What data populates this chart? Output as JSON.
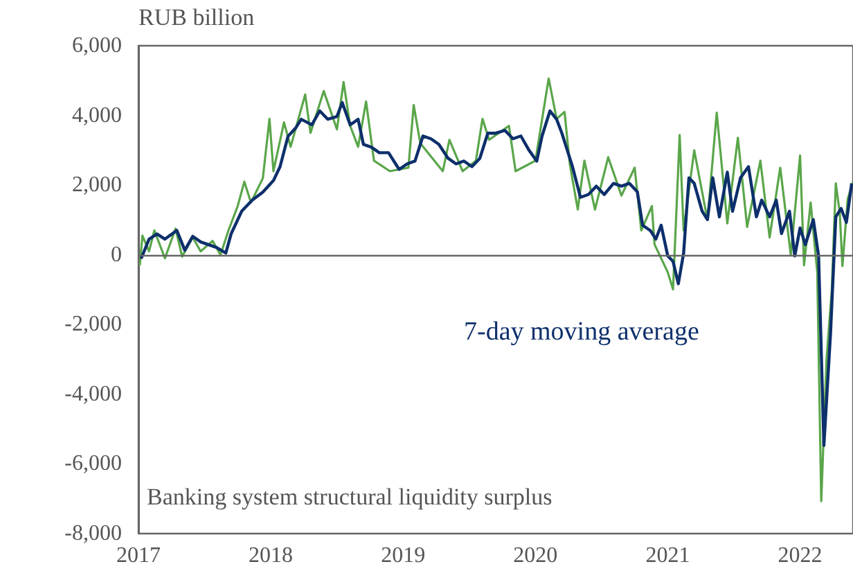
{
  "chart_data": {
    "type": "line",
    "title": "Banking system structural liquidity surplus",
    "ylabel": "RUB billion",
    "xlim": [
      2017,
      2022.4
    ],
    "xticks": [
      2017,
      2018,
      2019,
      2020,
      2021,
      2022
    ],
    "ylim": [
      -8000,
      6000
    ],
    "yticks": [
      {
        "value": 6000,
        "label": "6,000"
      },
      {
        "value": 4000,
        "label": "4,000"
      },
      {
        "value": 2000,
        "label": "2,000"
      },
      {
        "value": 0,
        "label": "0"
      },
      {
        "value": -2000,
        "label": "-2,000"
      },
      {
        "value": -4000,
        "label": "-4,000"
      },
      {
        "value": -6000,
        "label": "-6,000"
      },
      {
        "value": -8000,
        "label": "-8,000"
      }
    ],
    "grid": false,
    "legend": false,
    "marker": "none",
    "line_style": "solid",
    "ref_lines": [
      {
        "axis": "y",
        "value": 0,
        "color": "#666666"
      }
    ],
    "series": [
      {
        "color": "#5aa64a",
        "x": [
          2017.01,
          2017.03,
          2017.08,
          2017.12,
          2017.2,
          2017.28,
          2017.33,
          2017.41,
          2017.47,
          2017.56,
          2017.62,
          2017.68,
          2017.75,
          2017.8,
          2017.85,
          2017.94,
          2017.99,
          2018.02,
          2018.1,
          2018.15,
          2018.26,
          2018.3,
          2018.4,
          2018.5,
          2018.55,
          2018.6,
          2018.66,
          2018.72,
          2018.78,
          2018.9,
          2019.04,
          2019.08,
          2019.13,
          2019.3,
          2019.35,
          2019.45,
          2019.55,
          2019.6,
          2019.65,
          2019.8,
          2019.85,
          2020.0,
          2020.1,
          2020.16,
          2020.22,
          2020.26,
          2020.32,
          2020.37,
          2020.45,
          2020.55,
          2020.65,
          2020.75,
          2020.8,
          2020.88,
          2020.9,
          2021.0,
          2021.04,
          2021.09,
          2021.12,
          2021.2,
          2021.3,
          2021.37,
          2021.45,
          2021.53,
          2021.6,
          2021.7,
          2021.77,
          2021.85,
          2021.93,
          2022.0,
          2022.03,
          2022.08,
          2022.13,
          2022.16,
          2022.2,
          2022.24,
          2022.27,
          2022.3,
          2022.32,
          2022.36,
          2022.4
        ],
        "values": [
          -300,
          550,
          100,
          700,
          -100,
          750,
          -50,
          500,
          100,
          400,
          0,
          700,
          1400,
          2100,
          1500,
          2200,
          3900,
          2400,
          3800,
          3100,
          4600,
          3500,
          4700,
          3600,
          4960,
          3700,
          3100,
          4400,
          2700,
          2400,
          2500,
          4300,
          3200,
          2400,
          3300,
          2400,
          2700,
          3900,
          3300,
          3700,
          2400,
          2700,
          5060,
          3900,
          4100,
          2600,
          1300,
          2700,
          1300,
          2800,
          1700,
          2500,
          700,
          1400,
          300,
          -500,
          -990,
          3440,
          700,
          3000,
          1000,
          4080,
          900,
          3360,
          800,
          2700,
          500,
          2500,
          0,
          2850,
          -300,
          1500,
          -500,
          -7070,
          -3000,
          -1000,
          2050,
          1200,
          -320,
          1600,
          2100
        ]
      },
      {
        "name": "7-day moving average",
        "color": "#0d2f6b",
        "x": [
          2017.02,
          2017.08,
          2017.14,
          2017.2,
          2017.29,
          2017.35,
          2017.41,
          2017.47,
          2017.53,
          2017.59,
          2017.66,
          2017.7,
          2017.78,
          2017.86,
          2017.94,
          2018.02,
          2018.07,
          2018.13,
          2018.19,
          2018.23,
          2018.31,
          2018.37,
          2018.43,
          2018.5,
          2018.54,
          2018.6,
          2018.66,
          2018.7,
          2018.76,
          2018.82,
          2018.89,
          2018.97,
          2019.03,
          2019.09,
          2019.15,
          2019.21,
          2019.27,
          2019.34,
          2019.4,
          2019.46,
          2019.52,
          2019.58,
          2019.64,
          2019.7,
          2019.77,
          2019.83,
          2019.89,
          2019.95,
          2020.01,
          2020.05,
          2020.11,
          2020.16,
          2020.2,
          2020.24,
          2020.28,
          2020.34,
          2020.4,
          2020.46,
          2020.52,
          2020.59,
          2020.65,
          2020.71,
          2020.77,
          2020.81,
          2020.87,
          2020.91,
          2020.95,
          2021.0,
          2021.04,
          2021.08,
          2021.12,
          2021.16,
          2021.2,
          2021.26,
          2021.3,
          2021.34,
          2021.39,
          2021.45,
          2021.49,
          2021.55,
          2021.61,
          2021.67,
          2021.71,
          2021.77,
          2021.82,
          2021.86,
          2021.92,
          2021.96,
          2022.0,
          2022.04,
          2022.1,
          2022.14,
          2022.18,
          2022.23,
          2022.27,
          2022.31,
          2022.35,
          2022.39
        ],
        "values": [
          -110,
          450,
          600,
          450,
          700,
          130,
          530,
          370,
          290,
          210,
          50,
          600,
          1250,
          1570,
          1800,
          2130,
          2530,
          3400,
          3650,
          3890,
          3730,
          4130,
          3890,
          3970,
          4370,
          3730,
          3890,
          3170,
          3090,
          2930,
          2930,
          2450,
          2610,
          2690,
          3410,
          3330,
          3170,
          2770,
          2610,
          2690,
          2530,
          2770,
          3490,
          3490,
          3570,
          3330,
          3410,
          3010,
          2690,
          3410,
          4130,
          3890,
          3490,
          3010,
          2530,
          1650,
          1730,
          1970,
          1730,
          2050,
          1970,
          2050,
          1810,
          850,
          690,
          450,
          850,
          -30,
          -190,
          -830,
          50,
          2210,
          2050,
          1250,
          1010,
          2210,
          1090,
          2370,
          1250,
          2210,
          2530,
          1090,
          1570,
          1090,
          1570,
          610,
          1250,
          -30,
          770,
          290,
          1010,
          -30,
          -5470,
          -2270,
          1090,
          1330,
          930,
          2050
        ]
      }
    ]
  }
}
